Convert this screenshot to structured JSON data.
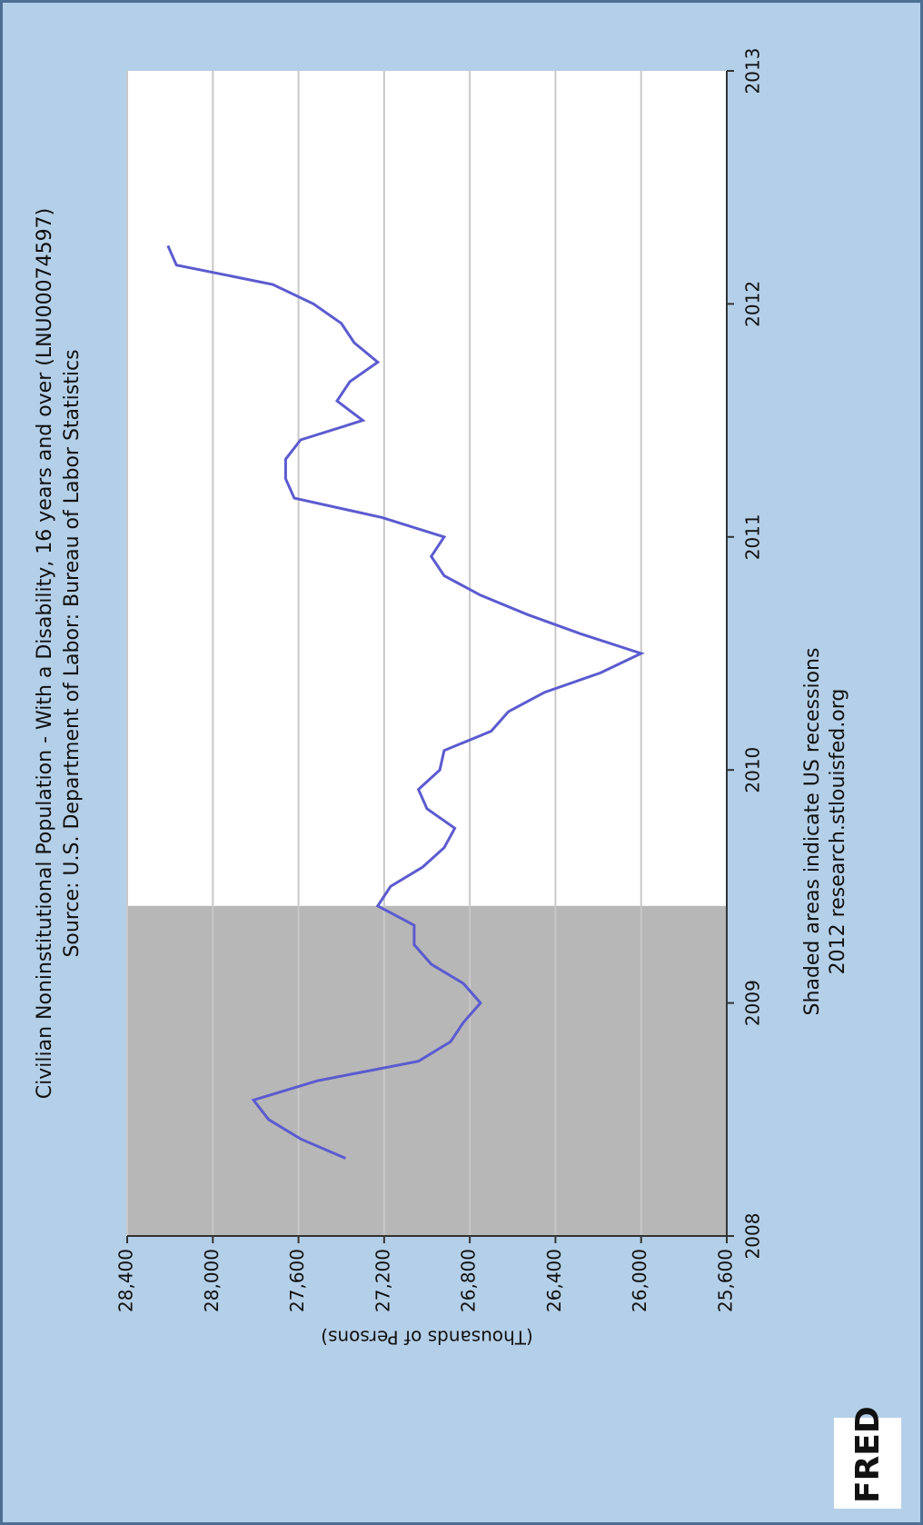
{
  "chart_data": {
    "type": "line",
    "title": "Civilian Noninstitutional Population - With a Disability, 16 years and over (LNU00074597)",
    "subtitle": "Source: U.S. Department of Labor: Bureau of Labor Statistics",
    "ylabel": "(Thousands of Persons)",
    "notes": [
      "Shaded areas indicate US recessions",
      "2012 research.stlouisfed.org"
    ],
    "logo": "FRED",
    "x": [
      "2008-05",
      "2008-06",
      "2008-07",
      "2008-08",
      "2008-09",
      "2008-10",
      "2008-11",
      "2008-12",
      "2009-01",
      "2009-02",
      "2009-03",
      "2009-04",
      "2009-05",
      "2009-06",
      "2009-07",
      "2009-08",
      "2009-09",
      "2009-10",
      "2009-11",
      "2009-12",
      "2010-01",
      "2010-02",
      "2010-03",
      "2010-04",
      "2010-05",
      "2010-06",
      "2010-07",
      "2010-08",
      "2010-09",
      "2010-10",
      "2010-11",
      "2010-12",
      "2011-01",
      "2011-02",
      "2011-03",
      "2011-04",
      "2011-05",
      "2011-06",
      "2011-07",
      "2011-08",
      "2011-09",
      "2011-10",
      "2011-11",
      "2011-12",
      "2012-01",
      "2012-02",
      "2012-03",
      "2012-04"
    ],
    "series": [
      {
        "name": "LNU00074597",
        "color": "#5b5bd0",
        "values": [
          27380,
          27590,
          27740,
          27810,
          27510,
          27040,
          26890,
          26830,
          26750,
          26830,
          26980,
          27060,
          27060,
          27230,
          27170,
          27020,
          26920,
          26870,
          27000,
          27040,
          26940,
          26920,
          26700,
          26620,
          26450,
          26190,
          26000,
          26280,
          26530,
          26750,
          26920,
          26980,
          26920,
          27210,
          27620,
          27660,
          27660,
          27590,
          27300,
          27420,
          27360,
          27230,
          27340,
          27400,
          27530,
          27720,
          28170,
          28210
        ]
      }
    ],
    "recessions": [
      {
        "start": "2008-01",
        "end": "2009-06"
      }
    ],
    "xlim": [
      "2008-01",
      "2013-01"
    ],
    "xticks": [
      "2008",
      "2009",
      "2010",
      "2011",
      "2012",
      "2013"
    ],
    "ylim": [
      25600,
      28400
    ],
    "yticks": [
      {
        "value": 25600,
        "label": "25,600"
      },
      {
        "value": 26000,
        "label": "26,000"
      },
      {
        "value": 26400,
        "label": "26,400"
      },
      {
        "value": 26800,
        "label": "26,800"
      },
      {
        "value": 27200,
        "label": "27,200"
      },
      {
        "value": 27600,
        "label": "27,600"
      },
      {
        "value": 28000,
        "label": "28,000"
      },
      {
        "value": 28400,
        "label": "28,400"
      }
    ],
    "grid": true,
    "recession_color": "#b7b7b7",
    "background": "#b4cfe8"
  }
}
